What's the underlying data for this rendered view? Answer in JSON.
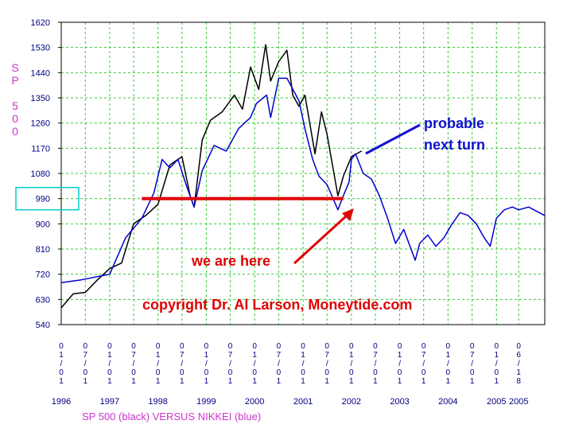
{
  "chart_data": {
    "type": "line",
    "ylabel": "SP 500",
    "xlabel": "SP 500 (black) VERSUS  NIKKEI (blue)",
    "ylim": [
      540,
      1620
    ],
    "yticks": [
      540,
      630,
      720,
      810,
      900,
      990,
      1080,
      1170,
      1260,
      1350,
      1440,
      1530,
      1620
    ],
    "highlighted_tick": "990",
    "x_start": "1996-01-01",
    "x_end": "2006-01-01",
    "x_tick_dates": [
      "1996-01-01",
      "1996-07-01",
      "1997-01-01",
      "1997-07-01",
      "1998-01-01",
      "1998-07-01",
      "1999-01-01",
      "1999-07-01",
      "2000-01-01",
      "2000-07-01",
      "2001-01-01",
      "2001-07-01",
      "2002-01-01",
      "2002-07-01",
      "2003-01-01",
      "2003-07-01",
      "2004-01-01",
      "2004-07-01",
      "2005-01-01",
      "2005-06-18"
    ],
    "x_tick_labels": [
      "0\n1\n/\n0\n1",
      "0\n7\n/\n0\n1",
      "0\n1\n/\n0\n1",
      "0\n7\n/\n0\n1",
      "0\n1\n/\n0\n1",
      "0\n7\n/\n0\n1",
      "0\n1\n/\n0\n1",
      "0\n7\n/\n0\n1",
      "0\n1\n/\n0\n1",
      "0\n7\n/\n0\n1",
      "0\n1\n/\n0\n1",
      "0\n7\n/\n0\n1",
      "0\n1\n/\n0\n1",
      "0\n7\n/\n0\n1",
      "0\n1\n/\n0\n1",
      "0\n7\n/\n0\n1",
      "0\n1\n/\n0\n1",
      "0\n7\n/\n0\n1",
      "0\n1\n/\n0\n1",
      "0\n6\n/\n1\n8"
    ],
    "year_labels": [
      {
        "text": "1996",
        "date": "1996-01-01"
      },
      {
        "text": "1997",
        "date": "1997-01-01"
      },
      {
        "text": "1998",
        "date": "1998-01-01"
      },
      {
        "text": "1999",
        "date": "1999-01-01"
      },
      {
        "text": "2000",
        "date": "2000-01-01"
      },
      {
        "text": "2001",
        "date": "2001-01-01"
      },
      {
        "text": "2002",
        "date": "2002-01-01"
      },
      {
        "text": "2003",
        "date": "2003-01-01"
      },
      {
        "text": "2004",
        "date": "2004-01-01"
      },
      {
        "text": "2005",
        "date": "2005-01-01"
      },
      {
        "text": "2005",
        "date": "2005-06-18"
      }
    ],
    "grid": true,
    "series": [
      {
        "color": "#000000",
        "points": [
          [
            "1996-01-01",
            600
          ],
          [
            "1996-04-01",
            650
          ],
          [
            "1996-07-01",
            655
          ],
          [
            "1996-10-01",
            700
          ],
          [
            "1997-01-01",
            740
          ],
          [
            "1997-04-01",
            760
          ],
          [
            "1997-07-01",
            900
          ],
          [
            "1997-10-01",
            930
          ],
          [
            "1998-01-01",
            970
          ],
          [
            "1998-04-01",
            1110
          ],
          [
            "1998-07-01",
            1140
          ],
          [
            "1998-09-01",
            1000
          ],
          [
            "1998-10-01",
            960
          ],
          [
            "1998-12-01",
            1200
          ],
          [
            "1999-02-01",
            1270
          ],
          [
            "1999-05-01",
            1300
          ],
          [
            "1999-08-01",
            1360
          ],
          [
            "1999-10-01",
            1310
          ],
          [
            "1999-12-01",
            1460
          ],
          [
            "2000-02-01",
            1380
          ],
          [
            "2000-03-24",
            1540
          ],
          [
            "2000-05-01",
            1410
          ],
          [
            "2000-07-01",
            1480
          ],
          [
            "2000-09-01",
            1520
          ],
          [
            "2000-10-15",
            1360
          ],
          [
            "2000-12-01",
            1320
          ],
          [
            "2001-01-15",
            1360
          ],
          [
            "2001-04-01",
            1150
          ],
          [
            "2001-05-20",
            1300
          ],
          [
            "2001-07-01",
            1220
          ],
          [
            "2001-09-21",
            1000
          ],
          [
            "2001-11-01",
            1070
          ],
          [
            "2002-01-01",
            1140
          ],
          [
            "2002-03-19",
            1160
          ]
        ]
      },
      {
        "color": "#0000cc",
        "points": [
          [
            "1996-01-01",
            690
          ],
          [
            "1996-06-01",
            700
          ],
          [
            "1997-01-01",
            720
          ],
          [
            "1997-05-01",
            850
          ],
          [
            "1997-09-01",
            920
          ],
          [
            "1997-12-01",
            1010
          ],
          [
            "1998-02-01",
            1130
          ],
          [
            "1998-04-01",
            1100
          ],
          [
            "1998-06-01",
            1130
          ],
          [
            "1998-08-01",
            1040
          ],
          [
            "1998-10-01",
            960
          ],
          [
            "1998-12-01",
            1090
          ],
          [
            "1999-03-01",
            1180
          ],
          [
            "1999-06-01",
            1160
          ],
          [
            "1999-09-01",
            1240
          ],
          [
            "1999-12-01",
            1280
          ],
          [
            "2000-01-15",
            1330
          ],
          [
            "2000-04-01",
            1360
          ],
          [
            "2000-05-01",
            1280
          ],
          [
            "2000-07-01",
            1420
          ],
          [
            "2000-09-01",
            1420
          ],
          [
            "2000-12-01",
            1340
          ],
          [
            "2001-01-15",
            1240
          ],
          [
            "2001-03-15",
            1130
          ],
          [
            "2001-05-01",
            1070
          ],
          [
            "2001-07-01",
            1040
          ],
          [
            "2001-09-21",
            950
          ],
          [
            "2001-11-01",
            1000
          ],
          [
            "2001-12-15",
            1050
          ],
          [
            "2002-01-01",
            1130
          ],
          [
            "2002-02-01",
            1150
          ],
          [
            "2002-04-01",
            1080
          ],
          [
            "2002-06-01",
            1060
          ],
          [
            "2002-08-01",
            1000
          ],
          [
            "2002-10-01",
            920
          ],
          [
            "2002-12-01",
            830
          ],
          [
            "2003-02-01",
            880
          ],
          [
            "2003-04-28",
            770
          ],
          [
            "2003-06-01",
            830
          ],
          [
            "2003-08-01",
            860
          ],
          [
            "2003-10-01",
            820
          ],
          [
            "2003-12-01",
            850
          ],
          [
            "2004-02-01",
            900
          ],
          [
            "2004-04-01",
            940
          ],
          [
            "2004-06-01",
            930
          ],
          [
            "2004-08-01",
            900
          ],
          [
            "2004-10-01",
            850
          ],
          [
            "2004-11-15",
            820
          ],
          [
            "2005-01-01",
            920
          ],
          [
            "2005-03-01",
            950
          ],
          [
            "2005-05-01",
            960
          ],
          [
            "2005-06-18",
            950
          ],
          [
            "2005-09-01",
            960
          ],
          [
            "2005-12-31",
            930
          ]
        ]
      }
    ],
    "annotations": {
      "line1": "probable",
      "line2": "next turn",
      "here": "we are here",
      "copyright": "copyright Dr. Al Larson, Moneytide.com"
    },
    "reference_line": {
      "y": 990,
      "x_from": "1997-09-01",
      "x_to": "2001-11-01",
      "color": "#e00000"
    },
    "colors": {
      "grid": "#33cc33",
      "axis_text": "#000080",
      "label": "#cc33cc",
      "highlight_box": "#00cccc"
    }
  }
}
